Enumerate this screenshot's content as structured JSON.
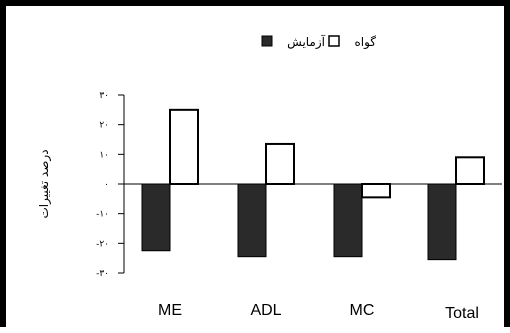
{
  "chart_data": {
    "type": "bar",
    "categories": [
      "ME",
      "ADL",
      "MC",
      "Total"
    ],
    "series": [
      {
        "name": "گواه",
        "values": [
          25,
          13.5,
          -4.5,
          9
        ],
        "fill": "#ffffff"
      },
      {
        "name": "آزمایش",
        "values": [
          -22.5,
          -24.5,
          -24.5,
          -25.5
        ],
        "fill": "#2a2a2a"
      }
    ],
    "ylabel": "درصد تغییرات",
    "ylim": [
      -30,
      30
    ],
    "yticks": [
      30,
      20,
      10,
      0,
      -10,
      -20,
      -30
    ],
    "ytick_labels": [
      "۳۰",
      "۲۰",
      "۱۰",
      "۰",
      "-۱۰",
      "-۲۰",
      "-۳۰"
    ],
    "legend_position": "top-center",
    "grid": false
  }
}
